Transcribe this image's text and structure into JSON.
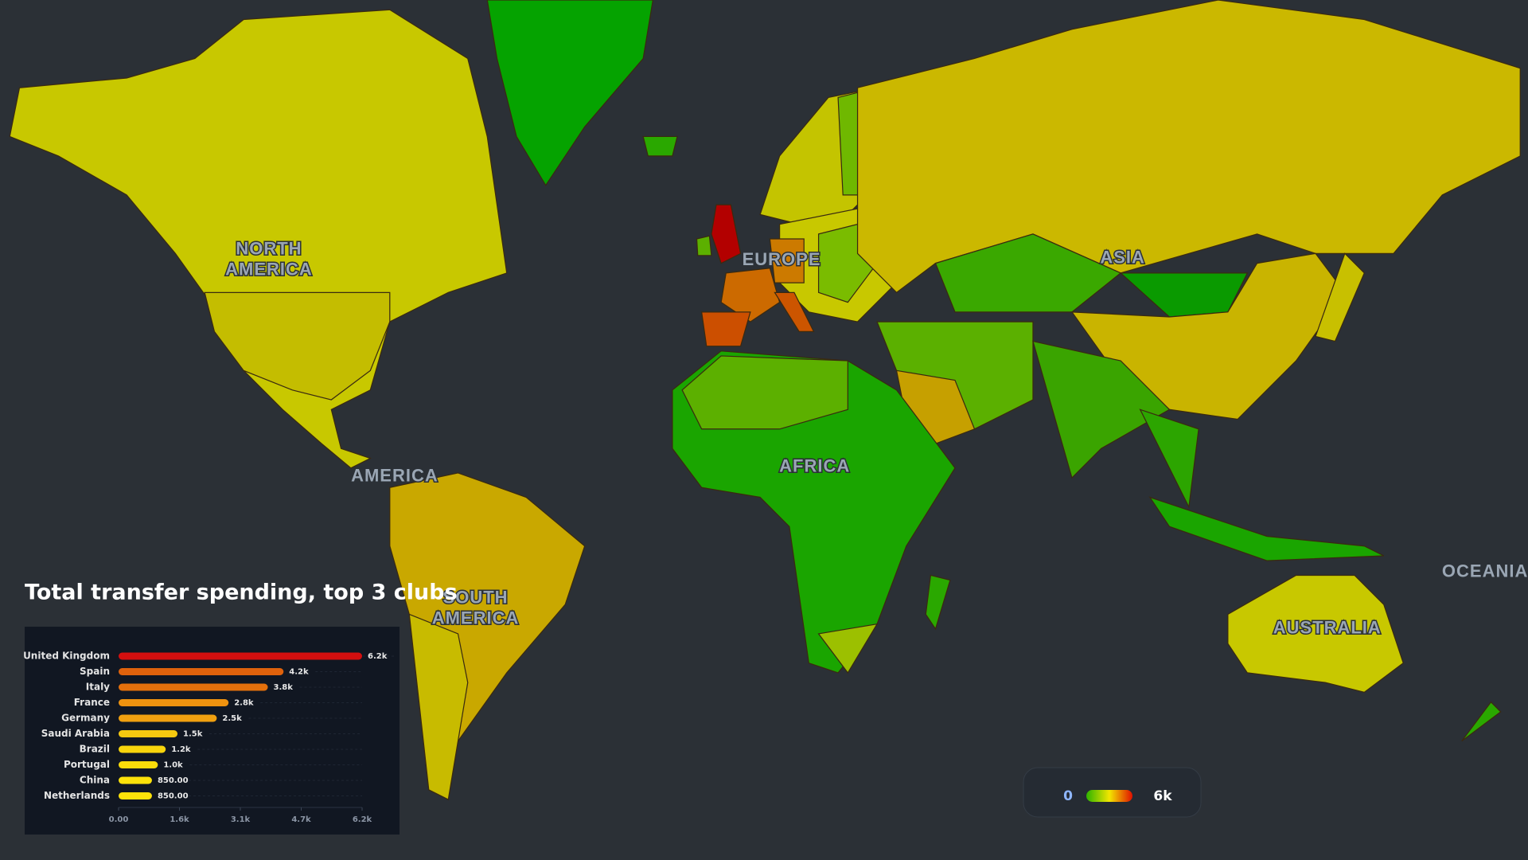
{
  "title": "Total transfer spending, top 3 clubs",
  "map": {
    "labels": [
      {
        "lines": [
          "NORTH",
          "AMERICA"
        ],
        "x": 276,
        "y": 256
      },
      {
        "lines": [
          "EUROPE"
        ],
        "x": 802,
        "y": 267
      },
      {
        "lines": [
          "ASIA"
        ],
        "x": 1152,
        "y": 265
      },
      {
        "lines": [
          "AMERICA"
        ],
        "x": 405,
        "y": 489
      },
      {
        "lines": [
          "AFRICA"
        ],
        "x": 836,
        "y": 479
      },
      {
        "lines": [
          "SOUTH",
          "AMERICA"
        ],
        "x": 488,
        "y": 614
      },
      {
        "lines": [
          "OCEANIA"
        ],
        "x": 1524,
        "y": 587
      },
      {
        "lines": [
          "AUSTRALIA"
        ],
        "x": 1362,
        "y": 645
      }
    ]
  },
  "legend": {
    "labels": [
      "0",
      "6k"
    ],
    "colors": [
      "#2db300",
      "#f2e600",
      "#e01000"
    ]
  },
  "chart_data": {
    "type": "bar",
    "orientation": "horizontal",
    "categories": [
      "United Kingdom",
      "Spain",
      "Italy",
      "France",
      "Germany",
      "Saudi Arabia",
      "Brazil",
      "Portugal",
      "China",
      "Netherlands"
    ],
    "values": [
      6200,
      4200,
      3800,
      2800,
      2500,
      1500,
      1200,
      1000,
      850,
      850
    ],
    "value_labels": [
      "6.2k",
      "4.2k",
      "3.8k",
      "2.8k",
      "2.5k",
      "1.5k",
      "1.2k",
      "1.0k",
      "850.00",
      "850.00"
    ],
    "colors": [
      "#d40f0f",
      "#e0620c",
      "#e4700c",
      "#ee920f",
      "#f0a010",
      "#f6c910",
      "#f8d50c",
      "#fadc0a",
      "#fde20a",
      "#fde20a"
    ],
    "xlim": [
      0,
      6200
    ],
    "xticks": [
      {
        "value": 0,
        "label": "0.00"
      },
      {
        "value": 1550,
        "label": "1.6k"
      },
      {
        "value": 3100,
        "label": "3.1k"
      },
      {
        "value": 4650,
        "label": "4.7k"
      },
      {
        "value": 6200,
        "label": "6.2k"
      }
    ]
  }
}
